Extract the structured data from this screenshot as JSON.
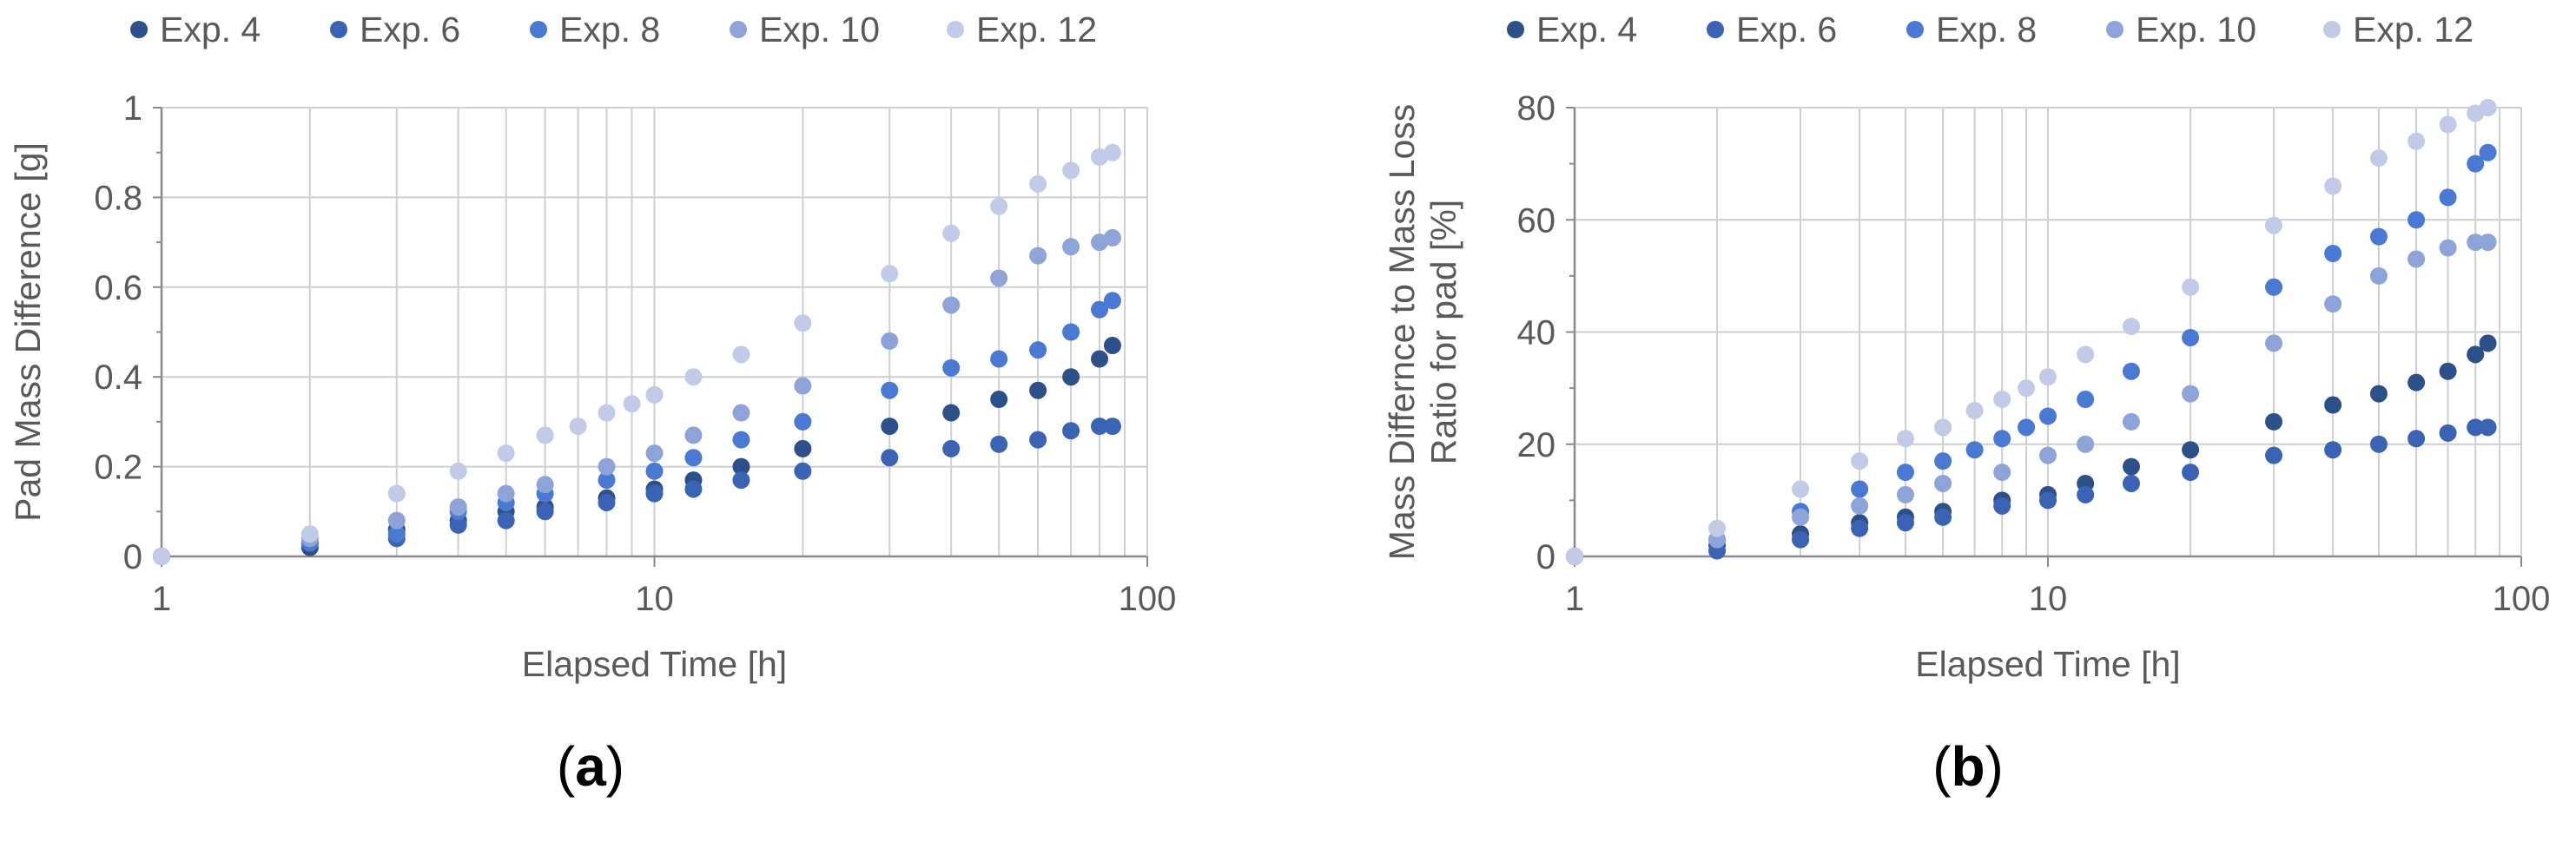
{
  "colors": {
    "series": [
      "#2e5089",
      "#3a63b3",
      "#4a79d3",
      "#8ea4d8",
      "#c1cbe8"
    ],
    "grid": "#cfcfcf",
    "axis": "#8a8a8a",
    "text": "#595959"
  },
  "chart_data": [
    {
      "panel_label": "(a)",
      "type": "scatter",
      "xscale": "log",
      "xlim": [
        1,
        100
      ],
      "ylim": [
        0,
        1
      ],
      "xticks": [
        "1",
        "10",
        "100"
      ],
      "yticks": [
        "0",
        "0.2",
        "0.4",
        "0.6",
        "0.8",
        "1"
      ],
      "xlabel": "Elapsed Time [h]",
      "ylabel": "Pad Mass Difference [g]",
      "legend_position": "top",
      "grid": true,
      "series": [
        {
          "name": "Exp. 4",
          "x": [
            1,
            2,
            3,
            4,
            5,
            6,
            8,
            10,
            12,
            15,
            20,
            30,
            40,
            50,
            60,
            70,
            80,
            85
          ],
          "y": [
            0,
            0.02,
            0.06,
            0.08,
            0.1,
            0.11,
            0.13,
            0.15,
            0.17,
            0.2,
            0.24,
            0.29,
            0.32,
            0.35,
            0.37,
            0.4,
            0.44,
            0.47
          ]
        },
        {
          "name": "Exp. 6",
          "x": [
            1,
            2,
            3,
            4,
            5,
            6,
            8,
            10,
            12,
            15,
            20,
            30,
            40,
            50,
            60,
            70,
            80,
            85
          ],
          "y": [
            0,
            0.03,
            0.04,
            0.07,
            0.08,
            0.1,
            0.12,
            0.14,
            0.15,
            0.17,
            0.19,
            0.22,
            0.24,
            0.25,
            0.26,
            0.28,
            0.29,
            0.29
          ]
        },
        {
          "name": "Exp. 8",
          "x": [
            1,
            2,
            3,
            4,
            5,
            6,
            8,
            10,
            12,
            15,
            20,
            30,
            40,
            50,
            60,
            70,
            80,
            85
          ],
          "y": [
            0,
            0.03,
            0.05,
            0.1,
            0.12,
            0.14,
            0.17,
            0.19,
            0.22,
            0.26,
            0.3,
            0.37,
            0.42,
            0.44,
            0.46,
            0.5,
            0.55,
            0.57
          ]
        },
        {
          "name": "Exp. 10",
          "x": [
            1,
            2,
            3,
            4,
            5,
            6,
            8,
            10,
            12,
            15,
            20,
            30,
            40,
            50,
            60,
            70,
            80,
            85
          ],
          "y": [
            0,
            0.04,
            0.08,
            0.11,
            0.14,
            0.16,
            0.2,
            0.23,
            0.27,
            0.32,
            0.38,
            0.48,
            0.56,
            0.62,
            0.67,
            0.69,
            0.7,
            0.71
          ]
        },
        {
          "name": "Exp. 12",
          "x": [
            1,
            2,
            3,
            4,
            5,
            6,
            7,
            8,
            9,
            10,
            12,
            15,
            20,
            30,
            40,
            50,
            60,
            70,
            80,
            85
          ],
          "y": [
            0,
            0.05,
            0.14,
            0.19,
            0.23,
            0.27,
            0.29,
            0.32,
            0.34,
            0.36,
            0.4,
            0.45,
            0.52,
            0.63,
            0.72,
            0.78,
            0.83,
            0.86,
            0.89,
            0.9
          ]
        }
      ]
    },
    {
      "panel_label": "(b)",
      "type": "scatter",
      "xscale": "log",
      "xlim": [
        1,
        100
      ],
      "ylim": [
        0,
        80
      ],
      "xticks": [
        "1",
        "10",
        "100"
      ],
      "yticks": [
        "0",
        "20",
        "40",
        "60",
        "80"
      ],
      "xlabel": "Elapsed Time [h]",
      "ylabel": [
        "Mass Differnce to Mass Loss",
        "Ratio for pad [%]"
      ],
      "legend_position": "top",
      "grid": true,
      "series": [
        {
          "name": "Exp. 4",
          "x": [
            1,
            2,
            3,
            4,
            5,
            6,
            8,
            10,
            12,
            15,
            20,
            30,
            40,
            50,
            60,
            70,
            80,
            85
          ],
          "y": [
            0,
            2,
            4,
            6,
            7,
            8,
            10,
            11,
            13,
            16,
            19,
            24,
            27,
            29,
            31,
            33,
            36,
            38
          ]
        },
        {
          "name": "Exp. 6",
          "x": [
            1,
            2,
            3,
            4,
            5,
            6,
            8,
            10,
            12,
            15,
            20,
            30,
            40,
            50,
            60,
            70,
            80,
            85
          ],
          "y": [
            0,
            1,
            3,
            5,
            6,
            7,
            9,
            10,
            11,
            13,
            15,
            18,
            19,
            20,
            21,
            22,
            23,
            23
          ]
        },
        {
          "name": "Exp. 8",
          "x": [
            1,
            2,
            3,
            4,
            5,
            6,
            7,
            8,
            9,
            10,
            12,
            15,
            20,
            30,
            40,
            50,
            60,
            70,
            80,
            85
          ],
          "y": [
            0,
            3,
            8,
            12,
            15,
            17,
            19,
            21,
            23,
            25,
            28,
            33,
            39,
            48,
            54,
            57,
            60,
            64,
            70,
            72
          ]
        },
        {
          "name": "Exp. 10",
          "x": [
            1,
            2,
            3,
            4,
            5,
            6,
            8,
            10,
            12,
            15,
            20,
            30,
            40,
            50,
            60,
            70,
            80,
            85
          ],
          "y": [
            0,
            3,
            7,
            9,
            11,
            13,
            15,
            18,
            20,
            24,
            29,
            38,
            45,
            50,
            53,
            55,
            56,
            56
          ]
        },
        {
          "name": "Exp. 12",
          "x": [
            1,
            2,
            3,
            4,
            5,
            6,
            7,
            8,
            9,
            10,
            12,
            15,
            20,
            30,
            40,
            50,
            60,
            70,
            80,
            85
          ],
          "y": [
            0,
            5,
            12,
            17,
            21,
            23,
            26,
            28,
            30,
            32,
            36,
            41,
            48,
            59,
            66,
            71,
            74,
            77,
            79,
            80
          ]
        }
      ]
    }
  ]
}
